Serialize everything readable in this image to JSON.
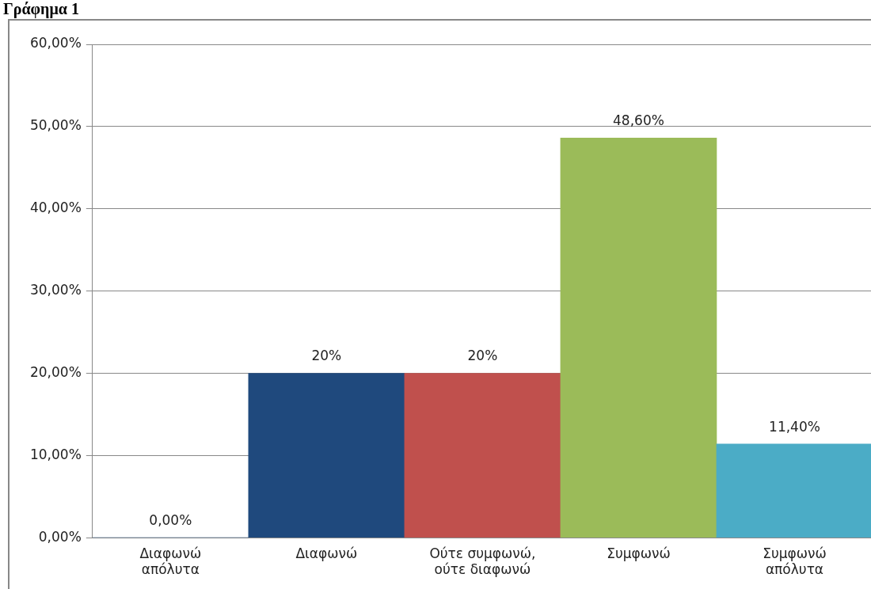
{
  "chart_data": {
    "type": "bar",
    "title": "Γράφημα 1",
    "categories": [
      "Διαφωνώ απόλυτα",
      "Διαφωνώ",
      "Ούτε συμφωνώ, ούτε διαφωνώ",
      "Συμφωνώ",
      "Συμφωνώ απόλυτα"
    ],
    "values": [
      0,
      20,
      20,
      48.6,
      11.4
    ],
    "colors": [
      "#1f497d",
      "#1f497d",
      "#c0504d",
      "#9bbb59",
      "#4bacc6"
    ],
    "value_labels": [
      "0,00%",
      "20%",
      "20%",
      "48,60%",
      "11,40%"
    ],
    "ylim": [
      0,
      60
    ],
    "yticks": [
      {
        "value": 0,
        "label": "0,00%"
      },
      {
        "value": 10,
        "label": "10,00%"
      },
      {
        "value": 20,
        "label": "20,00%"
      },
      {
        "value": 30,
        "label": "30,00%"
      },
      {
        "value": 40,
        "label": "40,00%"
      },
      {
        "value": 50,
        "label": "50,00%"
      },
      {
        "value": 60,
        "label": "60,00%"
      }
    ],
    "grid": "y",
    "legend": false
  }
}
